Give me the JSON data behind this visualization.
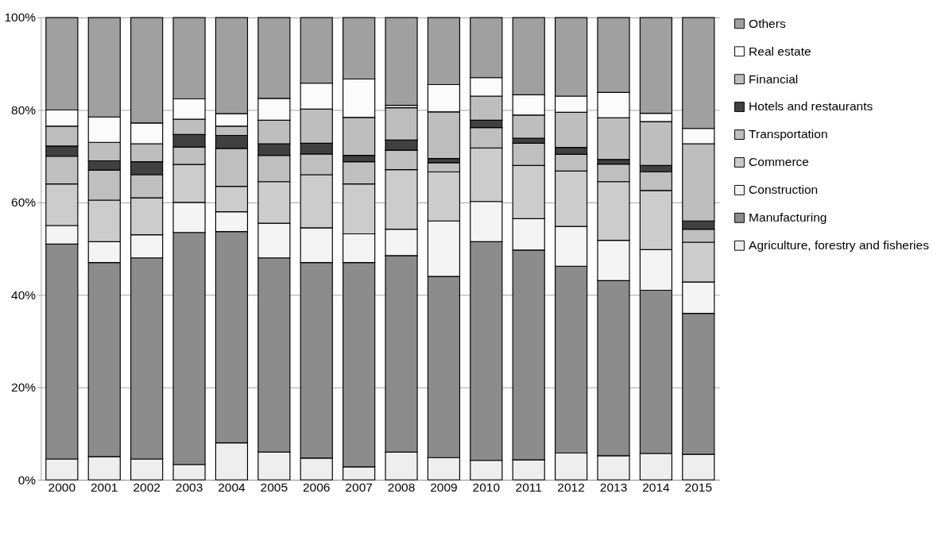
{
  "chart_data": {
    "type": "bar",
    "stacked": true,
    "categories": [
      "2000",
      "2001",
      "2002",
      "2003",
      "2004",
      "2005",
      "2006",
      "2007",
      "2008",
      "2009",
      "2010",
      "2011",
      "2012",
      "2013",
      "2014",
      "2015"
    ],
    "ylim": [
      0,
      100
    ],
    "yticks": [
      {
        "value": 0,
        "label": "0%"
      },
      {
        "value": 20,
        "label": "20%"
      },
      {
        "value": 40,
        "label": "40%"
      },
      {
        "value": 60,
        "label": "60%"
      },
      {
        "value": 80,
        "label": "80%"
      },
      {
        "value": 100,
        "label": "100%"
      }
    ],
    "grid": "y",
    "legend": "right",
    "series": [
      {
        "name": "Agriculture, forestry and fisheries",
        "color": "#eeeeee",
        "values": [
          4.5,
          5,
          4.5,
          3.3,
          8,
          6,
          4.7,
          2.8,
          6,
          4.8,
          4.2,
          4.3,
          5.8,
          5.2,
          5.7,
          5.5
        ]
      },
      {
        "name": "Manufacturing",
        "color": "#8c8c8c",
        "values": [
          46.5,
          42,
          43.5,
          50.2,
          45.7,
          42,
          42.3,
          44.2,
          42.5,
          39.2,
          47.3,
          45.4,
          40.4,
          37.9,
          35.3,
          30.5
        ]
      },
      {
        "name": "Construction",
        "color": "#f4f4f4",
        "values": [
          4,
          4.5,
          5,
          6.5,
          4.3,
          7.5,
          7.5,
          6.2,
          5.7,
          12,
          8.7,
          6.8,
          8.6,
          8.7,
          8.8,
          6.8
        ]
      },
      {
        "name": "Commerce",
        "color": "#cccccc",
        "values": [
          9,
          9,
          8,
          8.2,
          5.5,
          9,
          11.5,
          10.8,
          12.9,
          10.6,
          11.6,
          11.5,
          12,
          12.7,
          12.8,
          8.6
        ]
      },
      {
        "name": "Transportation",
        "color": "#bfbfbf",
        "values": [
          6,
          6.5,
          5,
          3.8,
          8.2,
          5.7,
          4.5,
          4.8,
          4.2,
          2,
          4.4,
          4.8,
          3.6,
          3.8,
          4,
          2.8
        ]
      },
      {
        "name": "Hotels and restaurants",
        "color": "#404040",
        "values": [
          2.2,
          2,
          2.8,
          2.7,
          2.8,
          2.5,
          2.3,
          1.4,
          2.2,
          0.9,
          1.6,
          1.1,
          1.5,
          1,
          1.4,
          1.8
        ]
      },
      {
        "name": "Financial",
        "color": "#bebebe",
        "values": [
          4.3,
          4,
          3.9,
          3.3,
          2,
          5.1,
          7.4,
          8.2,
          7,
          10.1,
          5.2,
          5,
          7.6,
          9,
          9.5,
          16.7
        ]
      },
      {
        "name": "Real estate",
        "color": "#fbfbfb",
        "values": [
          3.5,
          5.5,
          4.5,
          4.4,
          2.7,
          4.7,
          5.6,
          8.3,
          0.5,
          5.9,
          4,
          4.4,
          3.5,
          5.5,
          1.8,
          3.3
        ]
      },
      {
        "name": "Others",
        "color": "#a0a0a0",
        "values": [
          20,
          21.5,
          22.8,
          17.6,
          20.8,
          17.5,
          14.2,
          13.3,
          19,
          14.5,
          13,
          16.7,
          17,
          16.2,
          20.7,
          24
        ]
      }
    ]
  }
}
